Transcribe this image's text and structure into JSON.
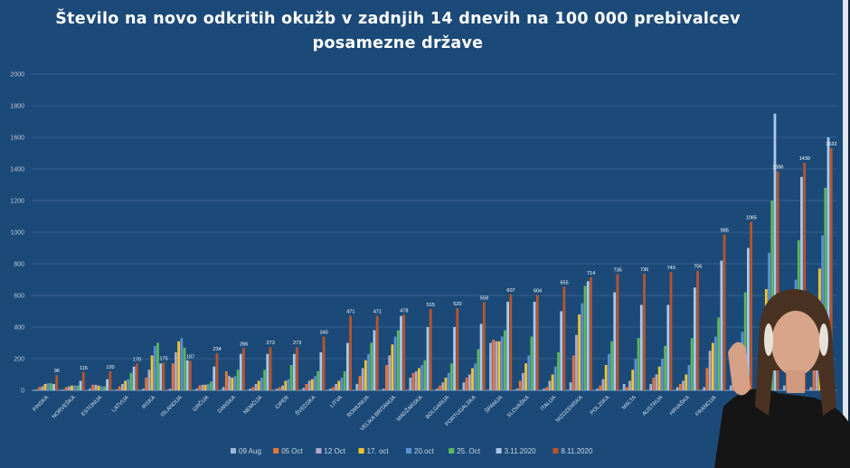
{
  "chart_data": {
    "type": "bar",
    "title": "Število na novo odkritih okužb v zadnjih 14 dnevih na 100 000 prebivalcev posamezne države",
    "xlabel": "",
    "ylabel": "",
    "ylim": [
      0,
      2000
    ],
    "yticks": [
      0,
      200,
      400,
      600,
      800,
      1000,
      1200,
      1400,
      1600,
      1800,
      2000
    ],
    "grid": true,
    "legend_position": "bottom",
    "categories": [
      "FINSKA",
      "NORVEŠKA",
      "ESTONIJA",
      "LATVIJA",
      "IRSKA",
      "ISLANDIJA",
      "GRČIJA",
      "DANSKA",
      "NEMČIJA",
      "CIPER",
      "ŠVEDSKA",
      "LITVA",
      "ROMUNIJA",
      "VELIKA BRITANIJA",
      "MADŽARSKA",
      "BOLGARIJA",
      "PORTUGALSKA",
      "ŠPANIJA",
      "SLOVAŠKA",
      "ITALIJA",
      "NIZOZEMSKA",
      "POLJSKA",
      "MALTA",
      "AUSTRIJA",
      "HRVAŠKA",
      "FRANCIJA",
      "",
      "",
      "",
      ""
    ],
    "series": [
      {
        "name": "09 Aug",
        "color": "#9fb6dc",
        "values": [
          5,
          5,
          10,
          5,
          10,
          10,
          10,
          20,
          10,
          10,
          15,
          10,
          40,
          10,
          80,
          10,
          50,
          300,
          10,
          10,
          50,
          10,
          40,
          40,
          20,
          20,
          30,
          30,
          30,
          20
        ]
      },
      {
        "name": "05 Oct",
        "color": "#e8763a",
        "values": [
          20,
          20,
          35,
          25,
          80,
          170,
          30,
          120,
          20,
          20,
          40,
          20,
          90,
          160,
          110,
          30,
          80,
          320,
          60,
          20,
          220,
          30,
          20,
          80,
          40,
          140,
          130,
          200,
          180,
          300
        ]
      },
      {
        "name": "12 Oct",
        "color": "#b4aac8",
        "values": [
          25,
          25,
          35,
          40,
          130,
          240,
          35,
          90,
          40,
          30,
          60,
          40,
          140,
          220,
          120,
          50,
          100,
          310,
          110,
          60,
          350,
          70,
          60,
          100,
          60,
          250,
          220,
          300,
          260,
          500
        ]
      },
      {
        "name": "17. oct",
        "color": "#f2c62e",
        "values": [
          40,
          30,
          30,
          60,
          220,
          310,
          35,
          80,
          60,
          60,
          70,
          60,
          190,
          290,
          140,
          80,
          140,
          310,
          170,
          100,
          480,
          160,
          130,
          150,
          100,
          300,
          300,
          640,
          400,
          770
        ]
      },
      {
        "name": "20.oct",
        "color": "#5b8fd6",
        "values": [
          45,
          30,
          25,
          70,
          280,
          330,
          40,
          90,
          80,
          70,
          90,
          80,
          230,
          340,
          160,
          110,
          170,
          340,
          220,
          150,
          550,
          230,
          200,
          200,
          160,
          340,
          370,
          870,
          700,
          980
        ]
      },
      {
        "name": "25. Oct",
        "color": "#5cb85c",
        "values": [
          45,
          30,
          25,
          110,
          300,
          270,
          55,
          130,
          130,
          160,
          120,
          120,
          300,
          380,
          190,
          170,
          260,
          380,
          340,
          240,
          660,
          310,
          330,
          280,
          330,
          460,
          620,
          1200,
          950,
          1280
        ]
      },
      {
        "name": "3.11.2020",
        "color": "#a9c9ec",
        "values": [
          40,
          60,
          70,
          150,
          170,
          190,
          150,
          230,
          230,
          230,
          240,
          300,
          380,
          470,
          400,
          400,
          420,
          560,
          560,
          500,
          690,
          620,
          540,
          540,
          650,
          820,
          900,
          1750,
          1350,
          1600
        ]
      },
      {
        "name": "8.11.2020",
        "color": "#b8552c",
        "values": [
          96,
          115,
          120,
          170,
          175,
          187,
          234,
          266,
          273,
          273,
          340,
          471,
          471,
          478,
          515,
          520,
          558,
          607,
          604,
          655,
          714,
          735,
          736,
          749,
          756,
          985,
          1065,
          1386,
          1439,
          1532
        ]
      }
    ],
    "data_labels_series": "8.11.2020"
  }
}
